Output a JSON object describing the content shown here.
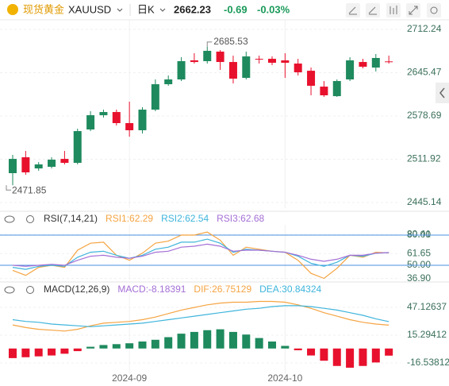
{
  "header": {
    "name": "现货黄金",
    "symbol": "XAUUSD",
    "period": "日K",
    "price": "2662.23",
    "change": "-0.69",
    "change_pct": "-0.03%"
  },
  "chart_data": [
    {
      "type": "candlestick",
      "open": [
        2490.5,
        2515.0,
        2497.8,
        2500.3,
        2512.5,
        2506.4,
        2557.9,
        2579.9,
        2584.8,
        2567.7,
        2556.7,
        2588.5,
        2627.7,
        2635.1,
        2664.5,
        2663.3,
        2678.0,
        2662.0,
        2637.5,
        2666.9,
        2666.9,
        2664.5,
        2659.6,
        2648.5,
        2624.0,
        2609.3,
        2635.1,
        2662.0,
        2653.4,
        2662.92
      ],
      "high": [
        2518.7,
        2524.8,
        2507.6,
        2515.0,
        2524.8,
        2559.1,
        2586.1,
        2588.5,
        2588.5,
        2600.8,
        2592.2,
        2635.1,
        2641.2,
        2669.4,
        2675.5,
        2685.53,
        2680.4,
        2671.8,
        2678.0,
        2671.8,
        2670.6,
        2675.5,
        2666.9,
        2653.4,
        2632.6,
        2635.1,
        2669.4,
        2666.9,
        2674.3,
        2671.8
      ],
      "low": [
        2471.85,
        2488.0,
        2494.2,
        2497.8,
        2504.0,
        2504.0,
        2555.4,
        2576.3,
        2564.0,
        2546.8,
        2551.7,
        2586.1,
        2625.3,
        2632.6,
        2659.6,
        2659.6,
        2649.8,
        2628.9,
        2635.1,
        2659.6,
        2657.1,
        2637.5,
        2641.2,
        2610.6,
        2608.1,
        2608.1,
        2632.6,
        2652.2,
        2647.3,
        2659.6
      ],
      "close": [
        2512.5,
        2491.7,
        2504.0,
        2511.3,
        2506.4,
        2555.4,
        2579.9,
        2584.8,
        2567.7,
        2556.7,
        2588.5,
        2627.7,
        2635.1,
        2663.3,
        2662.0,
        2679.2,
        2662.0,
        2636.3,
        2670.6,
        2665.7,
        2660.8,
        2660.8,
        2646.1,
        2625.3,
        2610.6,
        2632.6,
        2664.5,
        2654.7,
        2668.2,
        2662.23
      ],
      "up_color": "#1e8a5e",
      "down_color": "#e8112d",
      "ylim": [
        2436.6,
        2727.0
      ],
      "yticks": [
        2712.24,
        2645.47,
        2578.69,
        2511.92,
        2445.14
      ],
      "grid": true,
      "annotations": [
        {
          "value": 2685.53
        },
        {
          "value": 2471.85
        }
      ]
    },
    {
      "type": "line",
      "title": "RSI(7,14,21)",
      "series": [
        {
          "name": "RSI1:62.29",
          "color": "#f5a442",
          "values": [
            45,
            40,
            48,
            50,
            48,
            65,
            72,
            73,
            60,
            55,
            62,
            72,
            74,
            80,
            80,
            83,
            75,
            60,
            68,
            66,
            64,
            63,
            55,
            42,
            37,
            47,
            60,
            58,
            63,
            62.29
          ]
        },
        {
          "name": "RSI2:62.54",
          "color": "#3fb5dc",
          "values": [
            48,
            46,
            49,
            50,
            49,
            58,
            63,
            64,
            60,
            57,
            60,
            66,
            68,
            73,
            73,
            76,
            72,
            63,
            66,
            65,
            64,
            63,
            59,
            52,
            49,
            53,
            60,
            59,
            62,
            62.54
          ]
        },
        {
          "name": "RSI3:62.68",
          "color": "#a46fd6",
          "values": [
            50,
            49,
            50,
            51,
            50,
            55,
            59,
            60,
            58,
            57,
            59,
            63,
            64,
            68,
            69,
            71,
            69,
            64,
            65,
            65,
            64,
            63,
            60,
            56,
            54,
            56,
            60,
            60,
            62,
            62.68
          ]
        }
      ],
      "ylim": [
        35.8,
        90.3
      ],
      "yticks": [
        {
          "value": 80,
          "label": "80.00"
        },
        80.41,
        61.65,
        {
          "value": 50,
          "label": "50.00"
        },
        {
          "value": 36.9,
          "label": "36.90"
        }
      ],
      "levels": [
        80,
        50
      ],
      "level_color": "#4a90e2"
    },
    {
      "type": "combo",
      "title": "MACD(12,26,9)",
      "categories": [
        null,
        null,
        null,
        null,
        null,
        null,
        null,
        null,
        null,
        "2024-09",
        null,
        null,
        null,
        null,
        null,
        null,
        null,
        null,
        null,
        null,
        null,
        "2024-10",
        null,
        null,
        null,
        null,
        null,
        null,
        null,
        null
      ],
      "series": [
        {
          "name": "MACD:-8.18391",
          "kind": "bar",
          "color": "#a46fd6",
          "values": [
            -11,
            -10,
            -9,
            -8,
            -6,
            -3,
            2,
            4,
            5,
            6,
            8,
            10,
            13,
            17,
            19,
            21,
            22,
            19,
            16,
            12,
            8,
            3,
            -2,
            -8,
            -14,
            -20,
            -22,
            -20,
            -16,
            -8.18391
          ]
        },
        {
          "name": "DIF:26.75129",
          "kind": "line",
          "color": "#f5a442",
          "values": [
            27,
            24,
            22,
            21,
            20,
            22,
            26,
            29,
            30,
            31,
            33,
            36,
            40,
            44,
            47,
            50,
            52,
            53,
            53,
            54,
            54,
            53,
            50,
            46,
            41,
            37,
            33,
            30,
            28,
            26.75129
          ]
        },
        {
          "name": "DEA:30.84324",
          "kind": "line",
          "color": "#3fb5dc",
          "values": [
            33,
            31,
            30,
            28,
            27,
            26,
            25,
            26,
            27,
            28,
            29,
            31,
            33,
            35,
            37,
            39,
            41,
            43,
            45,
            46,
            48,
            49,
            49,
            48,
            46,
            44,
            41,
            38,
            34,
            30.84324
          ]
        }
      ],
      "pos_color": "#1e8a5e",
      "neg_color": "#e8112d",
      "ylim": [
        -28.4,
        71.7
      ],
      "yticks": [
        47.12637,
        15.29412,
        -16.53812
      ]
    }
  ]
}
